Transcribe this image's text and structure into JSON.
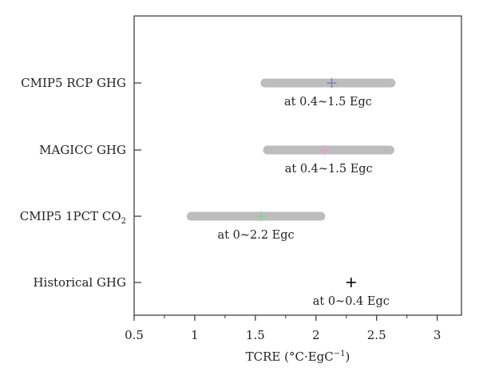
{
  "chart_data": {
    "type": "range",
    "xlabel": "TCRE (°C·EgC",
    "xlabel_sup": "−1",
    "xlabel_tail": ")",
    "xlim": [
      0.5,
      3.2
    ],
    "xticks": [
      "0.5",
      "1",
      "1.5",
      "2",
      "2.5",
      "3"
    ],
    "xtick_values": [
      0.5,
      1,
      1.5,
      2,
      2.5,
      3
    ],
    "grid": false,
    "categories": [
      {
        "label": "CMIP5 RCP GHG",
        "sub": "",
        "low": 1.58,
        "high": 2.62,
        "marker": 2.13,
        "marker_color": "#8080c0",
        "annotation": "at 0.4~1.5 Egc"
      },
      {
        "label": "MAGICC GHG",
        "sub": "",
        "low": 1.6,
        "high": 2.61,
        "marker": 2.07,
        "marker_color": "#e6a0c8",
        "annotation": "at 0.4~1.5 Egc"
      },
      {
        "label": "CMIP5 1PCT CO",
        "sub": "2",
        "low": 0.97,
        "high": 2.04,
        "marker": 1.55,
        "marker_color": "#8fd08f",
        "annotation": "at 0~2.2 Egc"
      },
      {
        "label": "Historical GHG",
        "sub": "",
        "low": null,
        "high": null,
        "marker": 2.29,
        "marker_color": "#000000",
        "annotation": "at 0~0.4 Egc"
      }
    ],
    "range_color": "#bdbdbd"
  }
}
